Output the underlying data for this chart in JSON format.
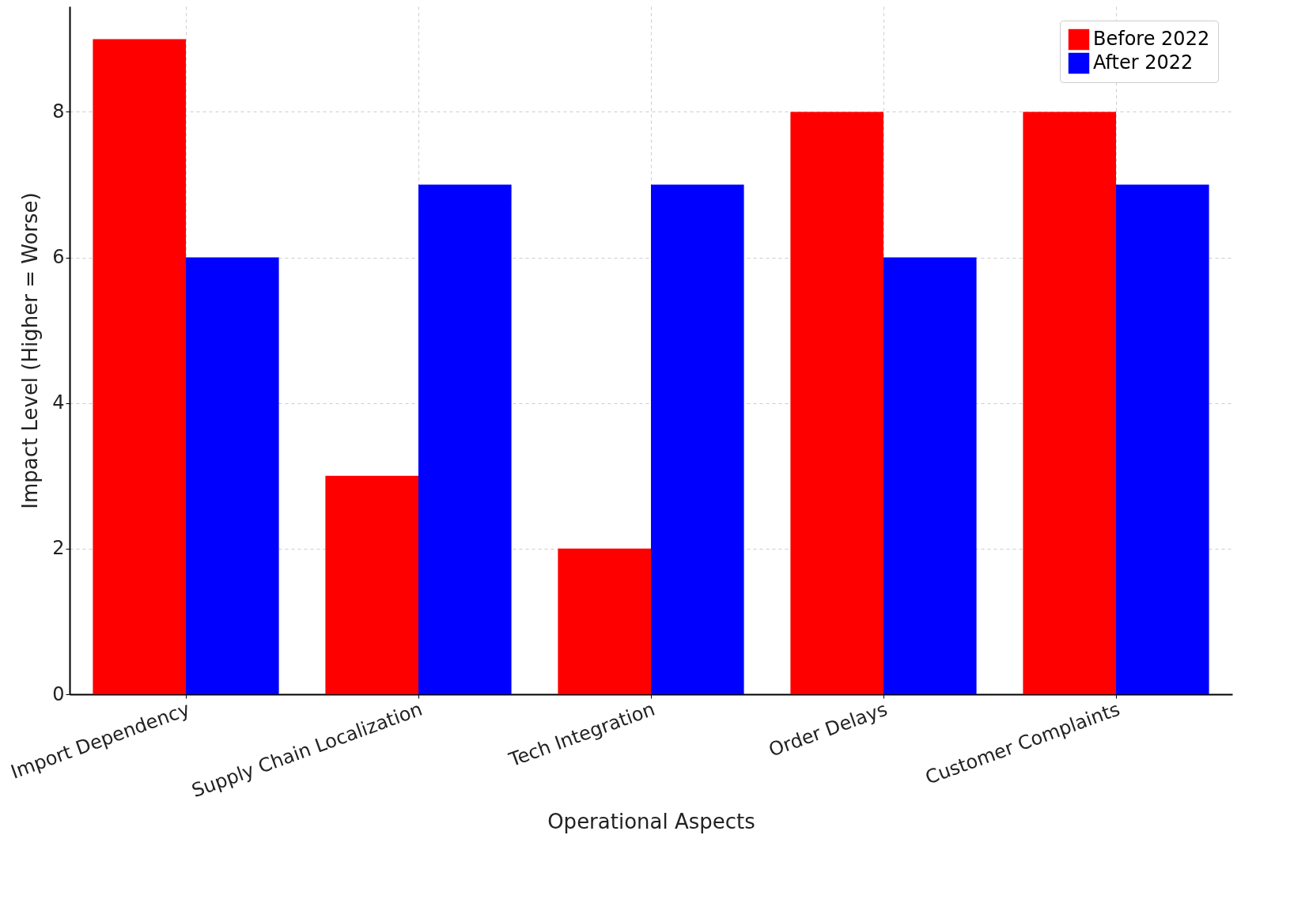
{
  "chart_data": {
    "type": "bar",
    "xlabel": "Operational Aspects",
    "ylabel": "Impact Level (Higher = Worse)",
    "categories": [
      "Import Dependency",
      "Supply Chain Localization",
      "Tech Integration",
      "Order Delays",
      "Customer Complaints"
    ],
    "series": [
      {
        "name": "Before 2022",
        "color": "#ff0000",
        "values": [
          9,
          3,
          2,
          8,
          8
        ]
      },
      {
        "name": "After 2022",
        "color": "#0000ff",
        "values": [
          6,
          7,
          7,
          6,
          7
        ]
      }
    ],
    "ylim": [
      0,
      9.45
    ],
    "yticks": [
      0,
      2,
      4,
      6,
      8
    ],
    "grid": true,
    "legend": "top right"
  }
}
